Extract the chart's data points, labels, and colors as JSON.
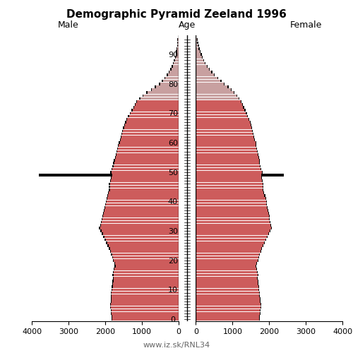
{
  "title": "Demographic Pyramid Zeeland 1996",
  "label_male": "Male",
  "label_female": "Female",
  "label_age": "Age",
  "watermark": "www.iz.sk/RNL34",
  "bar_color_red": "#cd5c5c",
  "bar_color_pink": "#c8a0a0",
  "black_color": "#000000",
  "background": "#ffffff",
  "xlim": 4000,
  "ages": [
    0,
    1,
    2,
    3,
    4,
    5,
    6,
    7,
    8,
    9,
    10,
    11,
    12,
    13,
    14,
    15,
    16,
    17,
    18,
    19,
    20,
    21,
    22,
    23,
    24,
    25,
    26,
    27,
    28,
    29,
    30,
    31,
    32,
    33,
    34,
    35,
    36,
    37,
    38,
    39,
    40,
    41,
    42,
    43,
    44,
    45,
    46,
    47,
    48,
    49,
    50,
    51,
    52,
    53,
    54,
    55,
    56,
    57,
    58,
    59,
    60,
    61,
    62,
    63,
    64,
    65,
    66,
    67,
    68,
    69,
    70,
    71,
    72,
    73,
    74,
    75,
    76,
    77,
    78,
    79,
    80,
    81,
    82,
    83,
    84,
    85,
    86,
    87,
    88,
    89,
    90,
    91,
    92,
    93,
    94,
    95
  ],
  "male_zeeland": [
    1800,
    1810,
    1820,
    1830,
    1840,
    1840,
    1830,
    1820,
    1820,
    1820,
    1800,
    1790,
    1780,
    1770,
    1760,
    1770,
    1760,
    1740,
    1710,
    1720,
    1760,
    1780,
    1810,
    1840,
    1870,
    1900,
    1940,
    1980,
    2020,
    2060,
    2100,
    2130,
    2110,
    2090,
    2070,
    2050,
    2030,
    2010,
    1990,
    1970,
    1950,
    1930,
    1910,
    1890,
    1870,
    1860,
    1860,
    1840,
    1820,
    1810,
    1830,
    1800,
    1770,
    1750,
    1730,
    1700,
    1680,
    1660,
    1640,
    1620,
    1600,
    1570,
    1550,
    1530,
    1510,
    1480,
    1450,
    1420,
    1390,
    1350,
    1300,
    1250,
    1200,
    1160,
    1120,
    1040,
    950,
    840,
    720,
    610,
    500,
    420,
    350,
    290,
    235,
    185,
    150,
    120,
    94,
    72,
    53,
    38,
    26,
    16,
    9,
    4
  ],
  "male_ref": [
    1820,
    1830,
    1840,
    1850,
    1860,
    1860,
    1850,
    1850,
    1850,
    1850,
    1830,
    1820,
    1810,
    1800,
    1790,
    1800,
    1790,
    1770,
    1740,
    1750,
    1790,
    1810,
    1840,
    1870,
    1900,
    1930,
    1970,
    2010,
    2050,
    2090,
    2130,
    2160,
    2140,
    2120,
    2100,
    2080,
    2060,
    2040,
    2020,
    2000,
    1980,
    1960,
    1940,
    1920,
    1900,
    1890,
    1890,
    1870,
    1850,
    3800,
    1860,
    1830,
    1800,
    1780,
    1760,
    1730,
    1710,
    1690,
    1670,
    1650,
    1630,
    1600,
    1580,
    1560,
    1540,
    1510,
    1480,
    1450,
    1420,
    1380,
    1330,
    1280,
    1230,
    1190,
    1150,
    1070,
    980,
    870,
    750,
    640,
    530,
    450,
    380,
    320,
    265,
    215,
    178,
    148,
    120,
    96,
    76,
    60,
    47,
    37,
    29,
    21
  ],
  "female_zeeland": [
    1720,
    1730,
    1740,
    1750,
    1760,
    1760,
    1750,
    1740,
    1730,
    1730,
    1710,
    1700,
    1690,
    1680,
    1670,
    1680,
    1670,
    1650,
    1630,
    1640,
    1680,
    1700,
    1730,
    1760,
    1790,
    1820,
    1860,
    1900,
    1940,
    1980,
    2020,
    2050,
    2040,
    2020,
    2000,
    1990,
    1980,
    1960,
    1940,
    1920,
    1910,
    1890,
    1870,
    1850,
    1830,
    1830,
    1830,
    1810,
    1790,
    1780,
    1800,
    1770,
    1740,
    1730,
    1720,
    1700,
    1690,
    1670,
    1650,
    1630,
    1620,
    1590,
    1570,
    1550,
    1530,
    1510,
    1490,
    1470,
    1440,
    1400,
    1360,
    1330,
    1290,
    1260,
    1220,
    1160,
    1100,
    1030,
    950,
    860,
    760,
    670,
    580,
    490,
    415,
    355,
    295,
    240,
    195,
    158,
    126,
    99,
    75,
    55,
    38,
    24
  ],
  "female_ref": [
    1740,
    1750,
    1760,
    1770,
    1780,
    1780,
    1770,
    1760,
    1750,
    1750,
    1730,
    1720,
    1710,
    1700,
    1690,
    1700,
    1690,
    1670,
    1650,
    1660,
    1700,
    1720,
    1750,
    1780,
    1810,
    1840,
    1880,
    1920,
    1960,
    2000,
    2040,
    2070,
    2060,
    2040,
    2020,
    2010,
    2000,
    1980,
    1960,
    1940,
    1930,
    1910,
    1890,
    1870,
    1850,
    1850,
    1850,
    1830,
    1810,
    2400,
    1820,
    1790,
    1760,
    1750,
    1740,
    1720,
    1710,
    1690,
    1670,
    1650,
    1640,
    1610,
    1590,
    1570,
    1550,
    1530,
    1510,
    1490,
    1460,
    1420,
    1390,
    1360,
    1320,
    1290,
    1250,
    1190,
    1130,
    1060,
    980,
    890,
    790,
    700,
    610,
    520,
    445,
    385,
    325,
    270,
    225,
    188,
    156,
    129,
    106,
    86,
    67,
    50
  ]
}
